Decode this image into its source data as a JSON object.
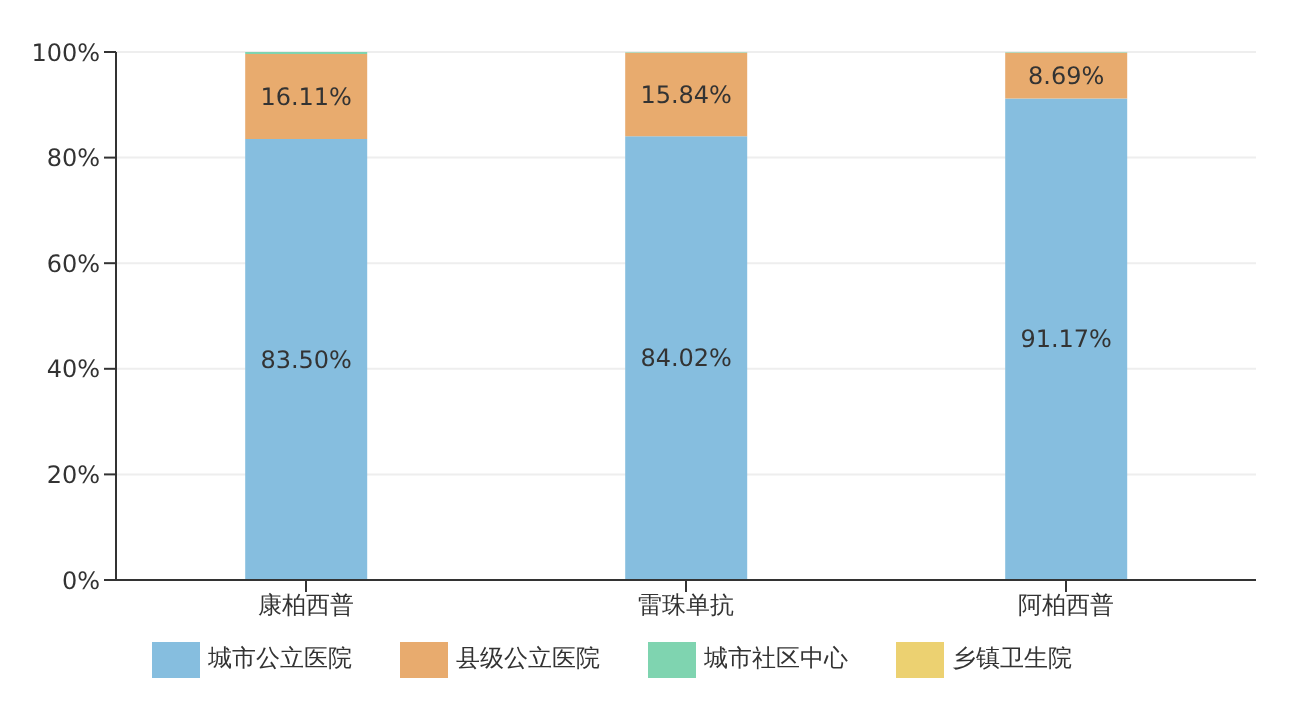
{
  "chart_data": {
    "type": "bar",
    "stacked": true,
    "categories": [
      "康柏西普",
      "雷珠单抗",
      "阿柏西普"
    ],
    "series": [
      {
        "name": "城市公立医院",
        "color": "#86bedf",
        "values": [
          83.5,
          84.02,
          91.17
        ],
        "value_labels": [
          "83.50%",
          "84.02%",
          "91.17%"
        ]
      },
      {
        "name": "县级公立医院",
        "color": "#e8ab6e",
        "values": [
          16.11,
          15.84,
          8.69
        ],
        "value_labels": [
          "16.11%",
          "15.84%",
          "8.69%"
        ]
      },
      {
        "name": "城市社区中心",
        "color": "#7fd4b0",
        "values": [
          0.4,
          0.1,
          0.1
        ],
        "value_labels": [
          null,
          null,
          null
        ]
      },
      {
        "name": "乡镇卫生院",
        "color": "#ecd171",
        "values": [
          0,
          0,
          0
        ],
        "value_labels": [
          null,
          null,
          null
        ]
      }
    ],
    "ylim": [
      0,
      100
    ],
    "yticks": [
      {
        "value": 0,
        "label": "0%"
      },
      {
        "value": 20,
        "label": "20%"
      },
      {
        "value": 40,
        "label": "40%"
      },
      {
        "value": 60,
        "label": "60%"
      },
      {
        "value": 80,
        "label": "80%"
      },
      {
        "value": 100,
        "label": "100%"
      }
    ],
    "grid": "y",
    "legend": "bottom"
  }
}
